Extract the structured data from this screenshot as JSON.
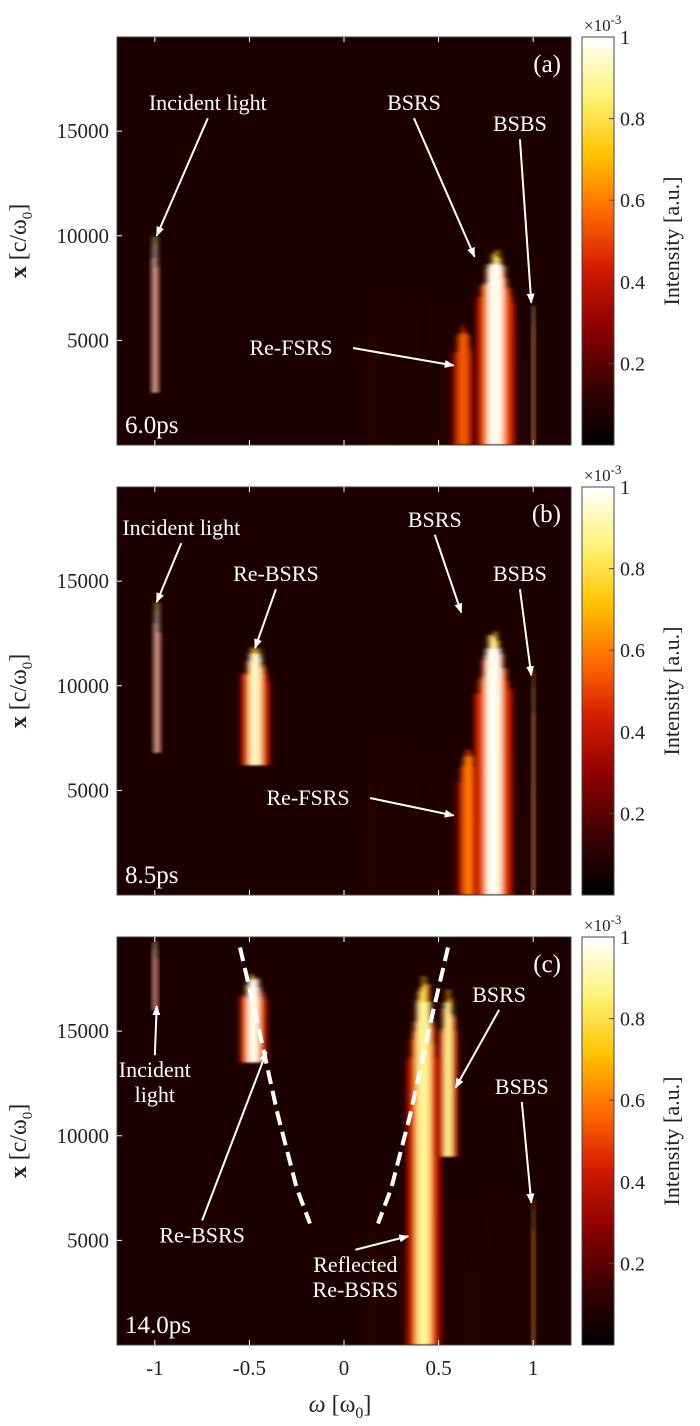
{
  "chart_data": {
    "type": "heatmap",
    "shared_x": {
      "label_symbol": "ω",
      "label_unit": "[ω",
      "label_sub": "0",
      "label_close": "]",
      "ticks": [
        -1,
        -0.5,
        0,
        0.5,
        1
      ],
      "tick_labels": [
        "-1",
        "-0.5",
        "0",
        "0.5",
        "1"
      ],
      "range": [
        -1.2,
        1.2
      ]
    },
    "y_axis": {
      "label_x": "x",
      "label_unit": "[c/ω",
      "label_sub": "0",
      "label_close": "]",
      "ticks": [
        5000,
        10000,
        15000
      ],
      "tick_labels": [
        "5000",
        "10000",
        "15000"
      ],
      "range": [
        0,
        19500
      ]
    },
    "colorbar": {
      "label": "Intensity [a.u.]",
      "exponent_base": "×10",
      "exponent_power": "-3",
      "ticks": [
        0.2,
        0.4,
        0.6,
        0.8,
        1
      ],
      "tick_labels": [
        "0.2",
        "0.4",
        "0.6",
        "0.8",
        "1"
      ],
      "range": [
        0,
        1
      ],
      "colors": [
        "#000000",
        "#3a0000",
        "#8b0000",
        "#d11a00",
        "#ff6a00",
        "#ffc400",
        "#fff37a",
        "#ffffff"
      ]
    },
    "panels": [
      {
        "tag": "(a)",
        "time": "6.0ps",
        "features": [
          {
            "omega": -1.0,
            "x_min": 2500,
            "x_max": 10200,
            "width": 0.03,
            "level": 1.0
          },
          {
            "omega": 0.63,
            "x_min": 0,
            "x_max": 5800,
            "width": 0.13,
            "level": 0.55
          },
          {
            "omega": 0.8,
            "x_min": 0,
            "x_max": 9400,
            "width": 0.2,
            "level": 1.0
          },
          {
            "omega": 1.0,
            "x_min": 0,
            "x_max": 7200,
            "width": 0.012,
            "level": 0.9
          }
        ],
        "annotations": [
          {
            "lines": [
              "Incident light"
            ],
            "text_omega": -0.72,
            "text_x": 16000,
            "arrow_to": [
              -0.99,
              10000
            ]
          },
          {
            "lines": [
              "BSRS"
            ],
            "text_omega": 0.37,
            "text_x": 16000,
            "arrow_to": [
              0.69,
              9000
            ]
          },
          {
            "lines": [
              "BSBS"
            ],
            "text_omega": 0.93,
            "text_x": 15000,
            "arrow_to": [
              0.99,
              6800
            ]
          },
          {
            "lines": [
              "Re-FSRS"
            ],
            "text_omega": -0.28,
            "text_x": 4300,
            "arrow_to": [
              0.58,
              3800
            ]
          }
        ]
      },
      {
        "tag": "(b)",
        "time": "8.5ps",
        "features": [
          {
            "omega": -0.99,
            "x_min": 6800,
            "x_max": 14200,
            "width": 0.03,
            "level": 1.0
          },
          {
            "omega": -0.47,
            "x_min": 6200,
            "x_max": 12000,
            "width": 0.15,
            "level": 0.95
          },
          {
            "omega": 0.66,
            "x_min": 0,
            "x_max": 7200,
            "width": 0.14,
            "level": 0.6
          },
          {
            "omega": 0.79,
            "x_min": 0,
            "x_max": 12800,
            "width": 0.2,
            "level": 1.0
          },
          {
            "omega": 1.0,
            "x_min": 0,
            "x_max": 10800,
            "width": 0.012,
            "level": 0.9
          }
        ],
        "annotations": [
          {
            "lines": [
              "Incident light"
            ],
            "text_omega": -0.86,
            "text_x": 17200,
            "arrow_to": [
              -0.99,
              14000
            ]
          },
          {
            "lines": [
              "Re-BSRS"
            ],
            "text_omega": -0.36,
            "text_x": 15000,
            "arrow_to": [
              -0.47,
              11800
            ]
          },
          {
            "lines": [
              "BSRS"
            ],
            "text_omega": 0.48,
            "text_x": 17600,
            "arrow_to": [
              0.62,
              13500
            ]
          },
          {
            "lines": [
              "BSBS"
            ],
            "text_omega": 0.93,
            "text_x": 15000,
            "arrow_to": [
              0.99,
              10500
            ]
          },
          {
            "lines": [
              "Re-FSRS"
            ],
            "text_omega": -0.19,
            "text_x": 4300,
            "arrow_to": [
              0.58,
              3800
            ]
          }
        ]
      },
      {
        "tag": "(c)",
        "time": "14.0ps",
        "features": [
          {
            "omega": -1.0,
            "x_min": 16000,
            "x_max": 19500,
            "width": 0.02,
            "level": 1.0
          },
          {
            "omega": -0.48,
            "x_min": 13500,
            "x_max": 17800,
            "width": 0.14,
            "level": 1.0
          },
          {
            "omega": 0.42,
            "x_min": 0,
            "x_max": 17800,
            "width": 0.18,
            "level": 0.9
          },
          {
            "omega": 0.55,
            "x_min": 9000,
            "x_max": 17000,
            "width": 0.1,
            "level": 0.9
          },
          {
            "omega": 1.0,
            "x_min": 0,
            "x_max": 7000,
            "width": 0.012,
            "level": 0.8
          }
        ],
        "guides": [
          [
            [
              -0.55,
              19000
            ],
            [
              -0.46,
              15500
            ],
            [
              -0.35,
              11000
            ],
            [
              -0.25,
              7500
            ],
            [
              -0.18,
              5800
            ]
          ],
          [
            [
              0.55,
              19000
            ],
            [
              0.46,
              15500
            ],
            [
              0.35,
              11000
            ],
            [
              0.25,
              7500
            ],
            [
              0.18,
              5800
            ]
          ]
        ],
        "annotations": [
          {
            "lines": [
              "Incident",
              "light"
            ],
            "text_omega": -1.0,
            "text_x": 12800,
            "arrow_to": [
              -0.99,
              16200
            ]
          },
          {
            "lines": [
              "Re-BSRS"
            ],
            "text_omega": -0.75,
            "text_x": 4900,
            "arrow_to": [
              -0.41,
              14000
            ]
          },
          {
            "lines": [
              "BSRS"
            ],
            "text_omega": 0.82,
            "text_x": 16400,
            "arrow_to": [
              0.59,
              12300
            ]
          },
          {
            "lines": [
              "BSBS"
            ],
            "text_omega": 0.94,
            "text_x": 12000,
            "arrow_to": [
              0.99,
              6800
            ]
          },
          {
            "lines": [
              "Reflected",
              "Re-BSRS"
            ],
            "text_omega": 0.06,
            "text_x": 3500,
            "arrow_to": [
              0.34,
              5200
            ]
          }
        ]
      }
    ]
  }
}
